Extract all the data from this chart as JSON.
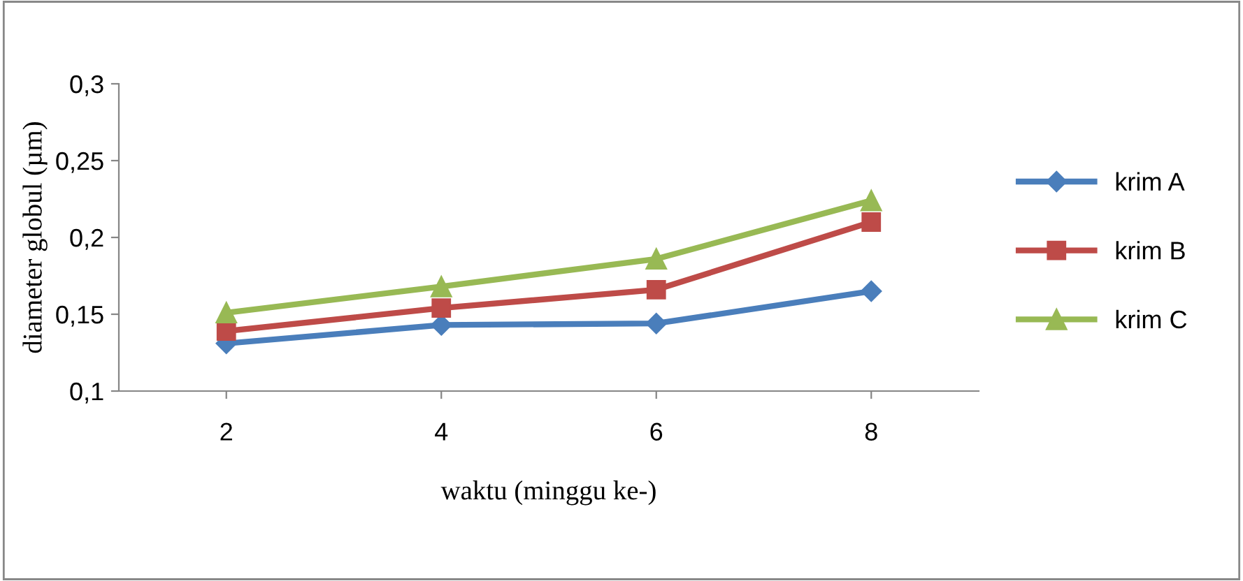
{
  "chart_data": {
    "type": "line",
    "xlabel": "waktu (minggu ke-)",
    "ylabel": "diameter globul (µm)",
    "categories": [
      "2",
      "4",
      "6",
      "8"
    ],
    "series": [
      {
        "name": "krim A",
        "color": "#4a7ebb",
        "marker": "diamond",
        "values": [
          0.131,
          0.143,
          0.144,
          0.165
        ]
      },
      {
        "name": "krim B",
        "color": "#be4b48",
        "marker": "square",
        "values": [
          0.139,
          0.154,
          0.166,
          0.21
        ]
      },
      {
        "name": "krim C",
        "color": "#98b954",
        "marker": "triangle",
        "values": [
          0.151,
          0.168,
          0.186,
          0.224
        ]
      }
    ],
    "ylim": [
      0.1,
      0.3
    ],
    "yticks": [
      {
        "value": 0.1,
        "label": "0,1"
      },
      {
        "value": 0.15,
        "label": "0,15"
      },
      {
        "value": 0.2,
        "label": "0,2"
      },
      {
        "value": 0.25,
        "label": "0,25"
      },
      {
        "value": 0.3,
        "label": "0,3"
      }
    ],
    "grid": false,
    "legend": "right",
    "line_style": "solid"
  }
}
